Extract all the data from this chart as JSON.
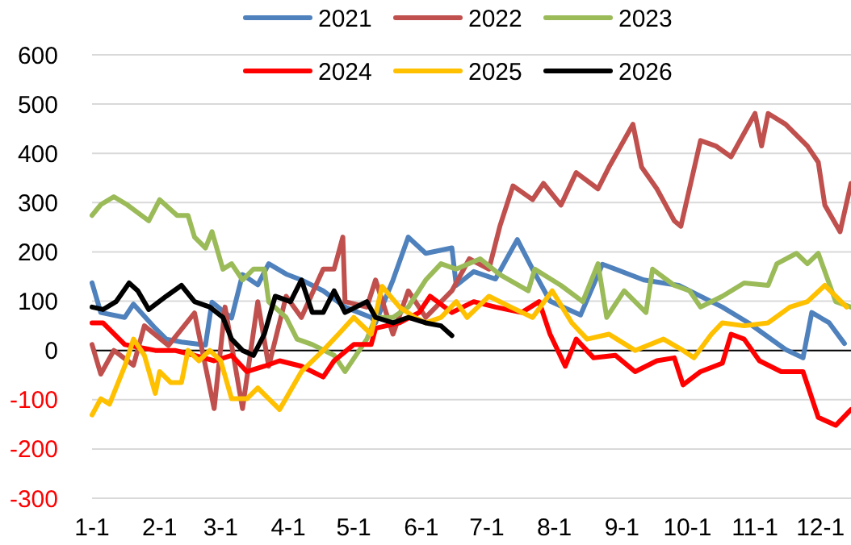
{
  "chart_data": {
    "type": "line",
    "xlim": [
      "--01-01",
      "--12-15"
    ],
    "xticks": [
      {
        "value": "--01-01",
        "label": "1-1"
      },
      {
        "value": "--02-01",
        "label": "2-1"
      },
      {
        "value": "--03-01",
        "label": "3-1"
      },
      {
        "value": "--04-01",
        "label": "4-1"
      },
      {
        "value": "--05-01",
        "label": "5-1"
      },
      {
        "value": "--06-01",
        "label": "6-1"
      },
      {
        "value": "--07-01",
        "label": "7-1"
      },
      {
        "value": "--08-01",
        "label": "8-1"
      },
      {
        "value": "--09-01",
        "label": "9-1"
      },
      {
        "value": "--10-01",
        "label": "10-1"
      },
      {
        "value": "--11-01",
        "label": "11-1"
      },
      {
        "value": "--12-01",
        "label": "12-1"
      }
    ],
    "ylim": [
      -300,
      600
    ],
    "yticks": [
      -300,
      -200,
      -100,
      0,
      100,
      200,
      300,
      400,
      500,
      600
    ],
    "grid": "y",
    "legend": "top",
    "marker": "none",
    "line_style": "solid",
    "series": [
      {
        "name": "2021",
        "color": "#4f81bd",
        "x": [
          "--01-01",
          "--01-05",
          "--01-16",
          "--01-20",
          "--01-30",
          "--02-04",
          "--02-11",
          "--02-22",
          "--02-25",
          "--03-06",
          "--03-11",
          "--03-18",
          "--03-23",
          "--03-31",
          "--04-07",
          "--04-17",
          "--04-27",
          "--05-09",
          "--05-11",
          "--05-19",
          "--05-26",
          "--06-03",
          "--06-15",
          "--06-17",
          "--06-25",
          "--07-05",
          "--07-15",
          "--07-22",
          "--07-30",
          "--08-13",
          "--08-23",
          "--09-11",
          "--09-27",
          "--10-17",
          "--10-29",
          "--11-15",
          "--11-23",
          "--11-27",
          "--12-05",
          "--12-12"
        ],
        "values": [
          137,
          77,
          67,
          94,
          45,
          23,
          17,
          11,
          98,
          66,
          154,
          133,
          176,
          155,
          143,
          121,
          88,
          67,
          56,
          143,
          230,
          197,
          208,
          132,
          160,
          145,
          225,
          165,
          100,
          72,
          175,
          143,
          132,
          88,
          56,
          2,
          -15,
          77,
          56,
          14
        ]
      },
      {
        "name": "2022",
        "color": "#c0504d",
        "x": [
          "--01-01",
          "--01-05",
          "--01-11",
          "--01-20",
          "--01-25",
          "--02-05",
          "--02-17",
          "--02-26",
          "--03-03",
          "--03-11",
          "--03-18",
          "--03-23",
          "--03-31",
          "--04-07",
          "--04-17",
          "--04-22",
          "--04-26",
          "--04-27",
          "--05-07",
          "--05-11",
          "--05-19",
          "--05-26",
          "--06-03",
          "--06-15",
          "--06-23",
          "--07-02",
          "--07-07",
          "--07-13",
          "--07-22",
          "--07-27",
          "--08-04",
          "--08-11",
          "--08-21",
          "--08-26",
          "--09-06",
          "--09-10",
          "--09-17",
          "--09-25",
          "--09-28",
          "--10-07",
          "--10-14",
          "--10-21",
          "--11-01",
          "--11-04",
          "--11-07",
          "--11-15",
          "--11-25",
          "--11-30",
          "--12-03",
          "--12-10",
          "--12-15"
        ],
        "values": [
          12,
          -48,
          0,
          -30,
          50,
          10,
          76,
          -118,
          88,
          -118,
          99,
          -32,
          110,
          67,
          165,
          165,
          230,
          99,
          88,
          143,
          33,
          121,
          67,
          121,
          186,
          165,
          252,
          334,
          306,
          339,
          295,
          361,
          328,
          372,
          459,
          372,
          328,
          263,
          252,
          426,
          415,
          393,
          481,
          415,
          481,
          459,
          415,
          382,
          295,
          241,
          339
        ]
      },
      {
        "name": "2023",
        "color": "#9bbb59",
        "x": [
          "--01-01",
          "--01-05",
          "--01-11",
          "--01-17",
          "--01-27",
          "--02-01",
          "--02-09",
          "--02-14",
          "--02-17",
          "--02-22",
          "--02-25",
          "--03-02",
          "--03-06",
          "--03-11",
          "--03-16",
          "--03-21",
          "--03-23",
          "--03-31",
          "--04-05",
          "--04-12",
          "--04-22",
          "--04-27",
          "--05-07",
          "--05-11",
          "--05-19",
          "--05-26",
          "--06-03",
          "--06-10",
          "--06-17",
          "--06-28",
          "--07-07",
          "--07-20",
          "--07-23",
          "--08-04",
          "--08-14",
          "--08-21",
          "--08-25",
          "--09-02",
          "--09-12",
          "--09-15",
          "--09-25",
          "--10-02",
          "--10-07",
          "--10-17",
          "--10-27",
          "--11-07",
          "--11-11",
          "--11-20",
          "--11-25",
          "--11-30",
          "--12-08",
          "--12-15"
        ],
        "values": [
          274,
          296,
          312,
          296,
          263,
          306,
          274,
          274,
          230,
          208,
          241,
          165,
          176,
          143,
          165,
          165,
          99,
          67,
          23,
          12,
          -10,
          -43,
          23,
          67,
          67,
          88,
          143,
          176,
          165,
          186,
          154,
          121,
          165,
          132,
          99,
          176,
          67,
          121,
          77,
          165,
          132,
          121,
          88,
          110,
          137,
          132,
          176,
          197,
          176,
          197,
          99,
          88
        ]
      },
      {
        "name": "2024",
        "color": "#ff0000",
        "x": [
          "--01-01",
          "--01-06",
          "--01-16",
          "--01-30",
          "--02-08",
          "--02-17",
          "--02-26",
          "--03-06",
          "--03-13",
          "--03-21",
          "--03-28",
          "--04-07",
          "--04-17",
          "--04-22",
          "--05-01",
          "--05-09",
          "--05-11",
          "--05-22",
          "--05-31",
          "--06-05",
          "--06-15",
          "--06-25",
          "--07-05",
          "--07-17",
          "--07-25",
          "--07-30",
          "--08-06",
          "--08-11",
          "--08-19",
          "--08-29",
          "--09-07",
          "--09-17",
          "--09-25",
          "--09-29",
          "--10-07",
          "--10-17",
          "--10-21",
          "--10-27",
          "--11-03",
          "--11-13",
          "--11-23",
          "--11-30",
          "--12-08",
          "--12-15"
        ],
        "values": [
          56,
          56,
          12,
          0,
          0,
          -10,
          -21,
          -10,
          -43,
          -32,
          -21,
          -32,
          -54,
          -21,
          12,
          12,
          45,
          56,
          77,
          110,
          77,
          99,
          88,
          77,
          99,
          33,
          -32,
          23,
          -15,
          -10,
          -43,
          -21,
          -15,
          -70,
          -43,
          -26,
          33,
          23,
          -21,
          -43,
          -43,
          -136,
          -152,
          -120
        ]
      },
      {
        "name": "2025",
        "color": "#ffc000",
        "x": [
          "--01-01",
          "--01-05",
          "--01-09",
          "--01-16",
          "--01-20",
          "--01-25",
          "--01-30",
          "--02-01",
          "--02-06",
          "--02-11",
          "--02-14",
          "--02-19",
          "--02-24",
          "--03-01",
          "--03-06",
          "--03-13",
          "--03-18",
          "--03-23",
          "--03-28",
          "--04-07",
          "--04-17",
          "--04-24",
          "--05-01",
          "--05-09",
          "--05-14",
          "--05-22",
          "--05-29",
          "--06-03",
          "--06-10",
          "--06-17",
          "--06-22",
          "--07-02",
          "--07-12",
          "--07-22",
          "--07-31",
          "--08-09",
          "--08-16",
          "--08-26",
          "--09-07",
          "--09-20",
          "--09-29",
          "--10-04",
          "--10-12",
          "--10-17",
          "--10-27",
          "--11-07",
          "--11-17",
          "--11-25",
          "--12-03",
          "--12-08",
          "--12-13"
        ],
        "values": [
          -131,
          -98,
          -109,
          -32,
          23,
          -10,
          -87,
          -43,
          -65,
          -65,
          0,
          -21,
          0,
          -21,
          -98,
          -98,
          -76,
          -98,
          -120,
          -43,
          0,
          33,
          67,
          33,
          130,
          88,
          67,
          56,
          67,
          99,
          67,
          110,
          88,
          67,
          121,
          56,
          23,
          33,
          0,
          23,
          0,
          -15,
          33,
          56,
          50,
          56,
          88,
          99,
          132,
          110,
          88
        ]
      },
      {
        "name": "2026",
        "color": "#000000",
        "x": [
          "--01-01",
          "--01-06",
          "--01-12",
          "--01-18",
          "--01-22",
          "--01-27",
          "--02-04",
          "--02-11",
          "--02-17",
          "--02-24",
          "--03-02",
          "--03-06",
          "--03-11",
          "--03-16",
          "--03-21",
          "--03-26",
          "--04-02",
          "--04-07",
          "--04-12",
          "--04-17",
          "--04-22",
          "--04-27",
          "--05-07",
          "--05-11",
          "--05-19",
          "--05-26",
          "--06-03",
          "--06-10",
          "--06-15"
        ],
        "values": [
          88,
          83,
          99,
          137,
          121,
          83,
          110,
          132,
          99,
          88,
          67,
          23,
          0,
          -10,
          33,
          110,
          99,
          143,
          77,
          77,
          121,
          77,
          99,
          67,
          56,
          67,
          56,
          50,
          30
        ]
      }
    ]
  }
}
